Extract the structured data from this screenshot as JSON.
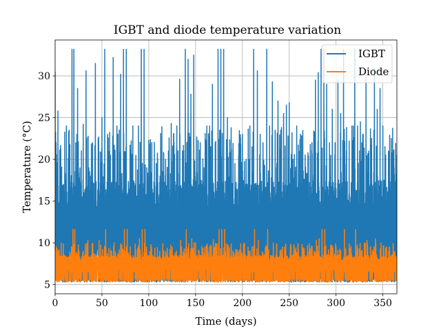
{
  "chart_data": {
    "type": "line",
    "title": "IGBT and diode temperature variation",
    "xlabel": "Time (days)",
    "ylabel": "Temperature (°C)",
    "xlim": [
      0,
      365
    ],
    "ylim": [
      3.9,
      34.3
    ],
    "xticks": [
      0,
      50,
      100,
      150,
      200,
      250,
      300,
      350
    ],
    "yticks": [
      5,
      10,
      15,
      20,
      25,
      30
    ],
    "grid": true,
    "legend_position": "top-right",
    "series": [
      {
        "name": "IGBT",
        "color": "#1f77b4",
        "baseline": 5.3,
        "typical_range": [
          7.5,
          17.5
        ],
        "frequent_peaks_range": [
          17.5,
          24
        ],
        "max": 33.2,
        "description": "high-frequency daily cycling",
        "peaks": [
          {
            "x": 0,
            "y": 30.5
          },
          {
            "x": 1,
            "y": 22.0
          },
          {
            "x": 3,
            "y": 25.8
          },
          {
            "x": 6,
            "y": 21.3
          },
          {
            "x": 9,
            "y": 17.0
          },
          {
            "x": 12,
            "y": 24.0
          },
          {
            "x": 15,
            "y": 23.5
          },
          {
            "x": 18,
            "y": 33.2
          },
          {
            "x": 20,
            "y": 33.2
          },
          {
            "x": 22,
            "y": 22.0
          },
          {
            "x": 24,
            "y": 28.5
          },
          {
            "x": 27,
            "y": 16.0
          },
          {
            "x": 30,
            "y": 24.2
          },
          {
            "x": 33,
            "y": 30.6
          },
          {
            "x": 36,
            "y": 19.0
          },
          {
            "x": 38,
            "y": 18.0
          },
          {
            "x": 40,
            "y": 22.0
          },
          {
            "x": 43,
            "y": 31.5
          },
          {
            "x": 46,
            "y": 22.5
          },
          {
            "x": 50,
            "y": 25.0
          },
          {
            "x": 53,
            "y": 33.2
          },
          {
            "x": 56,
            "y": 23.0
          },
          {
            "x": 59,
            "y": 20.5
          },
          {
            "x": 62,
            "y": 32.2
          },
          {
            "x": 66,
            "y": 24.0
          },
          {
            "x": 70,
            "y": 30.2
          },
          {
            "x": 73,
            "y": 33.2
          },
          {
            "x": 76,
            "y": 33.2
          },
          {
            "x": 80,
            "y": 21.7
          },
          {
            "x": 83,
            "y": 24.0
          },
          {
            "x": 86,
            "y": 17.0
          },
          {
            "x": 89,
            "y": 24.0
          },
          {
            "x": 92,
            "y": 33.2
          },
          {
            "x": 95,
            "y": 33.2
          },
          {
            "x": 98,
            "y": 19.0
          },
          {
            "x": 101,
            "y": 18.0
          },
          {
            "x": 105,
            "y": 16.0
          },
          {
            "x": 108,
            "y": 19.5
          },
          {
            "x": 112,
            "y": 18.0
          },
          {
            "x": 115,
            "y": 15.6
          },
          {
            "x": 118,
            "y": 20.0
          },
          {
            "x": 121,
            "y": 21.0
          },
          {
            "x": 124,
            "y": 24.3
          },
          {
            "x": 127,
            "y": 22.0
          },
          {
            "x": 130,
            "y": 24.0
          },
          {
            "x": 133,
            "y": 29.6
          },
          {
            "x": 136,
            "y": 21.0
          },
          {
            "x": 139,
            "y": 33.2
          },
          {
            "x": 142,
            "y": 32.0
          },
          {
            "x": 145,
            "y": 27.8
          },
          {
            "x": 148,
            "y": 32.5
          },
          {
            "x": 151,
            "y": 18.5
          },
          {
            "x": 155,
            "y": 22.0
          },
          {
            "x": 159,
            "y": 19.0
          },
          {
            "x": 162,
            "y": 24.0
          },
          {
            "x": 165,
            "y": 24.0
          },
          {
            "x": 168,
            "y": 29.0
          },
          {
            "x": 171,
            "y": 22.0
          },
          {
            "x": 174,
            "y": 33.2
          },
          {
            "x": 177,
            "y": 33.2
          },
          {
            "x": 180,
            "y": 33.2
          },
          {
            "x": 184,
            "y": 25.0
          },
          {
            "x": 188,
            "y": 23.8
          },
          {
            "x": 192,
            "y": 19.5
          },
          {
            "x": 196,
            "y": 20.5
          },
          {
            "x": 200,
            "y": 23.0
          },
          {
            "x": 204,
            "y": 20.0
          },
          {
            "x": 208,
            "y": 24.0
          },
          {
            "x": 212,
            "y": 33.2
          },
          {
            "x": 216,
            "y": 30.6
          },
          {
            "x": 219,
            "y": 23.0
          },
          {
            "x": 222,
            "y": 22.0
          },
          {
            "x": 226,
            "y": 33.2
          },
          {
            "x": 229,
            "y": 24.0
          },
          {
            "x": 232,
            "y": 29.3
          },
          {
            "x": 235,
            "y": 23.5
          },
          {
            "x": 238,
            "y": 27.0
          },
          {
            "x": 241,
            "y": 23.5
          },
          {
            "x": 244,
            "y": 25.5
          },
          {
            "x": 247,
            "y": 26.5
          },
          {
            "x": 250,
            "y": 26.8
          },
          {
            "x": 254,
            "y": 20.0
          },
          {
            "x": 258,
            "y": 24.0
          },
          {
            "x": 262,
            "y": 23.0
          },
          {
            "x": 266,
            "y": 17.6
          },
          {
            "x": 270,
            "y": 20.8
          },
          {
            "x": 274,
            "y": 21.0
          },
          {
            "x": 278,
            "y": 29.5
          },
          {
            "x": 281,
            "y": 30.4
          },
          {
            "x": 284,
            "y": 33.2
          },
          {
            "x": 287,
            "y": 33.2
          },
          {
            "x": 290,
            "y": 29.0
          },
          {
            "x": 293,
            "y": 22.0
          },
          {
            "x": 296,
            "y": 26.0
          },
          {
            "x": 299,
            "y": 22.0
          },
          {
            "x": 302,
            "y": 29.5
          },
          {
            "x": 305,
            "y": 25.5
          },
          {
            "x": 308,
            "y": 33.2
          },
          {
            "x": 311,
            "y": 21.0
          },
          {
            "x": 314,
            "y": 22.2
          },
          {
            "x": 317,
            "y": 24.0
          },
          {
            "x": 320,
            "y": 33.2
          },
          {
            "x": 323,
            "y": 24.0
          },
          {
            "x": 326,
            "y": 24.5
          },
          {
            "x": 329,
            "y": 23.0
          },
          {
            "x": 332,
            "y": 30.0
          },
          {
            "x": 335,
            "y": 21.0
          },
          {
            "x": 338,
            "y": 22.5
          },
          {
            "x": 341,
            "y": 31.0
          },
          {
            "x": 344,
            "y": 26.0
          },
          {
            "x": 347,
            "y": 28.5
          },
          {
            "x": 350,
            "y": 24.0
          },
          {
            "x": 353,
            "y": 20.5
          },
          {
            "x": 356,
            "y": 21.0
          },
          {
            "x": 359,
            "y": 22.5
          },
          {
            "x": 362,
            "y": 19.0
          },
          {
            "x": 364,
            "y": 20.5
          }
        ]
      },
      {
        "name": "Diode",
        "color": "#ff7f0e",
        "baseline": 5.3,
        "typical_range": [
          6.5,
          8.5
        ],
        "frequent_peaks_range": [
          8.5,
          10
        ],
        "max": 11.6,
        "description": "high-frequency daily cycling",
        "peaks": [
          {
            "x": 2,
            "y": 9.3
          },
          {
            "x": 10,
            "y": 8.5
          },
          {
            "x": 19,
            "y": 11.6
          },
          {
            "x": 21,
            "y": 11.6
          },
          {
            "x": 30,
            "y": 9.0
          },
          {
            "x": 35,
            "y": 10.3
          },
          {
            "x": 47,
            "y": 10.3
          },
          {
            "x": 54,
            "y": 11.6
          },
          {
            "x": 63,
            "y": 10.0
          },
          {
            "x": 74,
            "y": 11.6
          },
          {
            "x": 77,
            "y": 11.6
          },
          {
            "x": 90,
            "y": 10.5
          },
          {
            "x": 93,
            "y": 11.6
          },
          {
            "x": 96,
            "y": 11.6
          },
          {
            "x": 103,
            "y": 9.5
          },
          {
            "x": 116,
            "y": 9.0
          },
          {
            "x": 125,
            "y": 9.5
          },
          {
            "x": 134,
            "y": 10.3
          },
          {
            "x": 140,
            "y": 11.6
          },
          {
            "x": 146,
            "y": 10.5
          },
          {
            "x": 150,
            "y": 10.0
          },
          {
            "x": 160,
            "y": 9.5
          },
          {
            "x": 169,
            "y": 10.4
          },
          {
            "x": 175,
            "y": 11.6
          },
          {
            "x": 178,
            "y": 11.6
          },
          {
            "x": 181,
            "y": 11.6
          },
          {
            "x": 193,
            "y": 9.2
          },
          {
            "x": 206,
            "y": 9.5
          },
          {
            "x": 213,
            "y": 11.6
          },
          {
            "x": 217,
            "y": 10.3
          },
          {
            "x": 227,
            "y": 11.6
          },
          {
            "x": 233,
            "y": 10.0
          },
          {
            "x": 245,
            "y": 9.5
          },
          {
            "x": 252,
            "y": 9.7
          },
          {
            "x": 266,
            "y": 9.3
          },
          {
            "x": 279,
            "y": 10.3
          },
          {
            "x": 282,
            "y": 10.5
          },
          {
            "x": 285,
            "y": 11.6
          },
          {
            "x": 288,
            "y": 11.6
          },
          {
            "x": 300,
            "y": 9.5
          },
          {
            "x": 309,
            "y": 11.6
          },
          {
            "x": 321,
            "y": 11.6
          },
          {
            "x": 333,
            "y": 10.3
          },
          {
            "x": 342,
            "y": 10.5
          },
          {
            "x": 348,
            "y": 10.0
          },
          {
            "x": 357,
            "y": 9.5
          }
        ]
      }
    ]
  }
}
